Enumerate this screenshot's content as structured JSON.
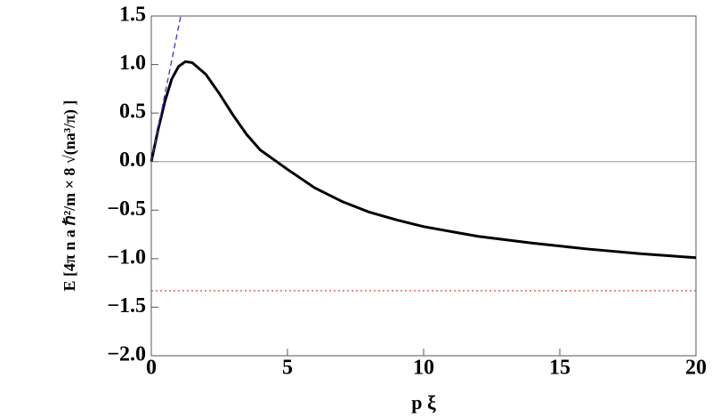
{
  "chart_data": {
    "type": "line",
    "x_label": "p ξ",
    "y_label": "E [4π n a ℏ²/m × 8 √(na³/π) ]",
    "xlim": [
      0,
      20
    ],
    "ylim": [
      -2.0,
      1.5
    ],
    "xticks": [
      0,
      5,
      10,
      15,
      20
    ],
    "yticks": [
      {
        "value": -2.0,
        "label": "−2.0"
      },
      {
        "value": -1.5,
        "label": "−1.5"
      },
      {
        "value": -1.0,
        "label": "−1.0"
      },
      {
        "value": -0.5,
        "label": "−0.5"
      },
      {
        "value": 0.0,
        "label": "0.0"
      },
      {
        "value": 0.5,
        "label": "0.5"
      },
      {
        "value": 1.0,
        "label": "1.0"
      },
      {
        "value": 1.5,
        "label": "1.5"
      }
    ],
    "zero_line": true,
    "series": [
      {
        "color": "#000000",
        "dash": "solid",
        "x": [
          0,
          0.25,
          0.5,
          0.75,
          1,
          1.25,
          1.5,
          2,
          2.5,
          3,
          3.5,
          4,
          4.6,
          5,
          6,
          7,
          8,
          9,
          10,
          12,
          14,
          16,
          18,
          20
        ],
        "values": [
          0,
          0.33,
          0.62,
          0.85,
          0.98,
          1.03,
          1.02,
          0.9,
          0.7,
          0.48,
          0.28,
          0.12,
          0,
          -0.08,
          -0.27,
          -0.41,
          -0.52,
          -0.6,
          -0.67,
          -0.77,
          -0.84,
          -0.9,
          -0.95,
          -0.99
        ]
      },
      {
        "color": "#3333cc",
        "dash": "dashed",
        "x": [
          0,
          1.08
        ],
        "values": [
          0,
          1.5
        ]
      },
      {
        "color": "#dd4444",
        "dash": "dotted",
        "x": [
          0,
          20
        ],
        "values": [
          -1.33,
          -1.33
        ]
      }
    ]
  }
}
